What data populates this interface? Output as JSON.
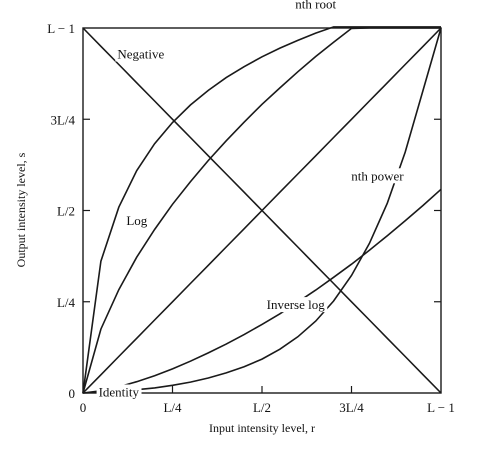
{
  "chart_data": {
    "type": "line",
    "xlabel": "Input intensity level, r",
    "ylabel": "Output intensity level, s",
    "xlim": [
      0,
      1
    ],
    "ylim": [
      0,
      1
    ],
    "grid": false,
    "x_ticks": [
      {
        "value": 0,
        "label": "0"
      },
      {
        "value": 0.25,
        "label": "L/4"
      },
      {
        "value": 0.5,
        "label": "L/2"
      },
      {
        "value": 0.75,
        "label": "3L/4"
      },
      {
        "value": 1,
        "label": "L − 1"
      }
    ],
    "y_ticks": [
      {
        "value": 0,
        "label": "0"
      },
      {
        "value": 0.25,
        "label": "L/4"
      },
      {
        "value": 0.5,
        "label": "L/2"
      },
      {
        "value": 0.75,
        "label": "3L/4"
      },
      {
        "value": 1,
        "label": "L − 1"
      }
    ],
    "x": [
      0,
      0.05,
      0.1,
      0.15,
      0.2,
      0.25,
      0.3,
      0.35,
      0.4,
      0.45,
      0.5,
      0.55,
      0.6,
      0.65,
      0.7,
      0.75,
      0.8,
      0.85,
      0.9,
      0.95,
      1
    ],
    "series": [
      {
        "key": "negative",
        "values": [
          1,
          0.95,
          0.9,
          0.85,
          0.8,
          0.75,
          0.7,
          0.65,
          0.6,
          0.55,
          0.5,
          0.45,
          0.4,
          0.35,
          0.3,
          0.25,
          0.2,
          0.15,
          0.1,
          0.05,
          0
        ]
      },
      {
        "key": "log",
        "values": [
          0,
          0.361,
          0.509,
          0.609,
          0.683,
          0.741,
          0.789,
          0.829,
          0.864,
          0.894,
          0.921,
          0.945,
          0.966,
          0.986,
          1.003,
          1.003,
          1.003,
          1.003,
          1.003,
          1.003,
          1.003
        ]
      },
      {
        "key": "nth_root",
        "values": [
          0,
          0.175,
          0.283,
          0.372,
          0.448,
          0.517,
          0.579,
          0.637,
          0.691,
          0.742,
          0.791,
          0.836,
          0.88,
          0.922,
          0.961,
          0.999,
          1.0,
          1.0,
          1.0,
          1.0,
          1.0
        ]
      },
      {
        "key": "identity",
        "values": [
          0,
          0.05,
          0.1,
          0.15,
          0.2,
          0.25,
          0.3,
          0.35,
          0.4,
          0.45,
          0.5,
          0.55,
          0.6,
          0.65,
          0.7,
          0.75,
          0.8,
          0.85,
          0.9,
          0.95,
          1
        ]
      },
      {
        "key": "nth_power",
        "values": [
          0,
          0.006,
          0.017,
          0.031,
          0.047,
          0.066,
          0.087,
          0.11,
          0.134,
          0.16,
          0.188,
          0.217,
          0.249,
          0.282,
          0.317,
          0.353,
          0.391,
          0.431,
          0.472,
          0.514,
          0.558
        ]
      },
      {
        "key": "inverse_log",
        "values": [
          0,
          0.002,
          0.005,
          0.009,
          0.014,
          0.021,
          0.03,
          0.041,
          0.055,
          0.072,
          0.093,
          0.12,
          0.154,
          0.197,
          0.252,
          0.322,
          0.41,
          0.52,
          0.66,
          0.83,
          1
        ]
      }
    ],
    "curve_labels": [
      {
        "series": "negative",
        "text": "Negative"
      },
      {
        "series": "log",
        "text": "Log"
      },
      {
        "series": "nth_root",
        "text": "nth root"
      },
      {
        "series": "identity",
        "text": "Identity"
      },
      {
        "series": "nth_power",
        "text": "nth power"
      },
      {
        "series": "inverse_log",
        "text": "Inverse log"
      }
    ]
  }
}
